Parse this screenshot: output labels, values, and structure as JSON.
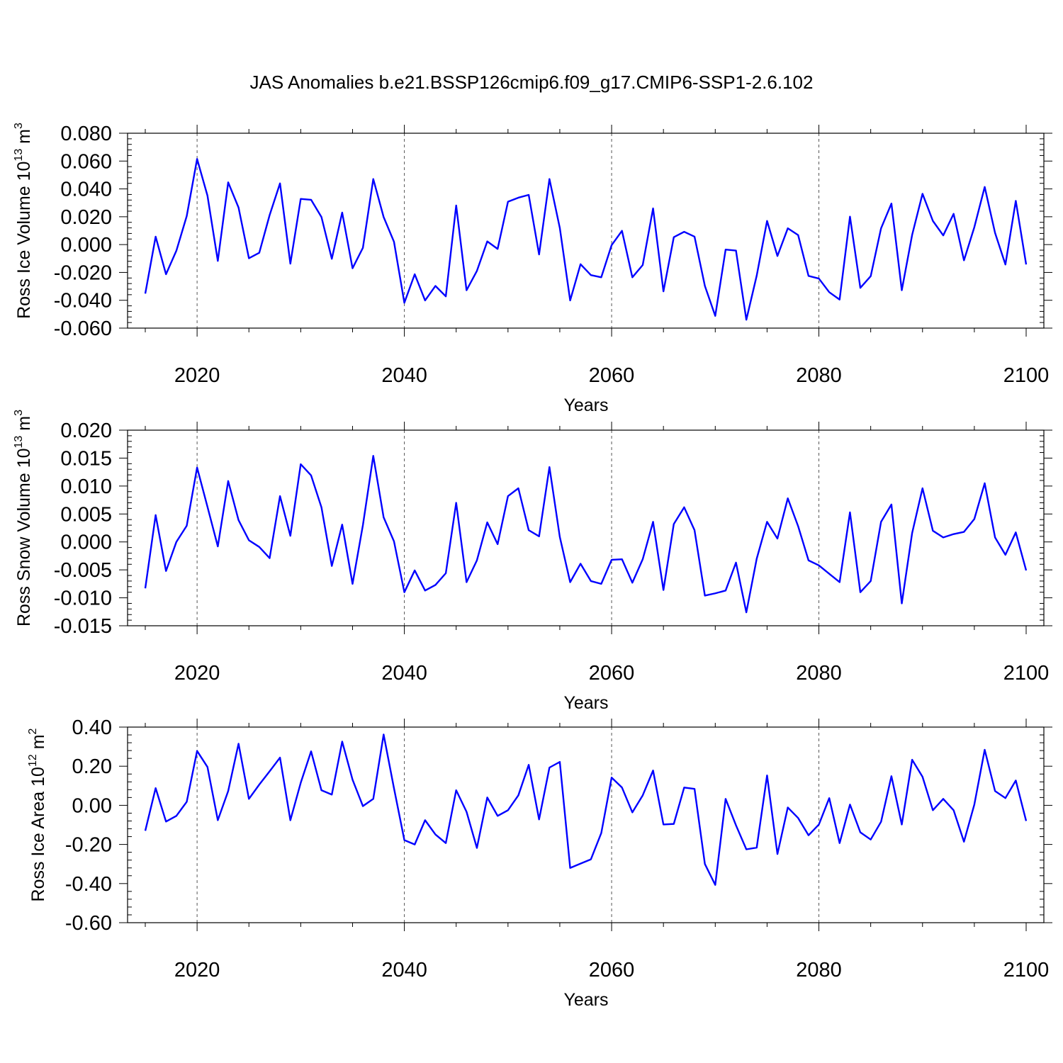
{
  "title": "JAS Anomalies b.e21.BSSP126cmip6.f09_g17.CMIP6-SSP1-2.6.102",
  "colors": {
    "series": "#0000ff",
    "axes": "#000000",
    "grid": "#555555"
  },
  "chart_data": [
    {
      "type": "line",
      "xlabel": "Years",
      "ylabel_main": "Ross Ice Volume 10",
      "ylabel_exp": "13",
      "ylabel_unit": " m",
      "ylabel_unit_exp": "3",
      "xlim": [
        2015,
        2100
      ],
      "ylim": [
        -0.06,
        0.08
      ],
      "xticks": [
        2020,
        2040,
        2060,
        2080,
        2100
      ],
      "xtick_labels": [
        "2020",
        "2040",
        "2060",
        "2080",
        "2100"
      ],
      "yticks": [
        -0.06,
        -0.04,
        -0.02,
        0.0,
        0.02,
        0.04,
        0.06,
        0.08
      ],
      "ytick_labels": [
        "-0.060",
        "-0.040",
        "-0.020",
        "0.000",
        "0.020",
        "0.040",
        "0.060",
        "0.080"
      ],
      "grid": "vertical dashed at major x ticks",
      "x_start": 2015,
      "values": [
        -0.0352,
        0.0057,
        -0.0213,
        -0.0044,
        0.0205,
        0.0615,
        0.0352,
        -0.0117,
        0.0447,
        0.0266,
        -0.0098,
        -0.0059,
        0.0212,
        0.044,
        -0.0137,
        0.0328,
        0.0322,
        0.0198,
        -0.0102,
        0.023,
        -0.017,
        -0.0023,
        0.0471,
        0.0198,
        0.002,
        -0.0418,
        -0.0213,
        -0.0401,
        -0.0297,
        -0.0372,
        0.0281,
        -0.0328,
        -0.0189,
        0.0023,
        -0.0031,
        0.0308,
        0.0337,
        0.0357,
        -0.0071,
        0.0471,
        0.012,
        -0.0401,
        -0.0141,
        -0.0219,
        -0.0235,
        -0.0004,
        0.0099,
        -0.0235,
        -0.0147,
        0.026,
        -0.0336,
        0.0053,
        0.0092,
        0.0057,
        -0.0297,
        -0.0512,
        -0.0036,
        -0.0043,
        -0.054,
        -0.0223,
        0.017,
        -0.0082,
        0.0117,
        0.0068,
        -0.0225,
        -0.0244,
        -0.0342,
        -0.0395,
        0.0201,
        -0.0311,
        -0.0227,
        0.0117,
        0.0295,
        -0.0328,
        0.007,
        0.0365,
        0.017,
        0.0066,
        0.0221,
        -0.0113,
        0.0125,
        0.0414,
        0.0084,
        -0.0143,
        0.0314,
        -0.0143
      ]
    },
    {
      "type": "line",
      "xlabel": "Years",
      "ylabel_main": "Ross Snow Volume 10",
      "ylabel_exp": "13",
      "ylabel_unit": " m",
      "ylabel_unit_exp": "3",
      "xlim": [
        2015,
        2100
      ],
      "ylim": [
        -0.015,
        0.02
      ],
      "xticks": [
        2020,
        2040,
        2060,
        2080,
        2100
      ],
      "xtick_labels": [
        "2020",
        "2040",
        "2060",
        "2080",
        "2100"
      ],
      "yticks": [
        -0.015,
        -0.01,
        -0.005,
        0.0,
        0.005,
        0.01,
        0.015,
        0.02
      ],
      "ytick_labels": [
        "-0.015",
        "-0.010",
        "-0.005",
        "0.000",
        "0.005",
        "0.010",
        "0.015",
        "0.020"
      ],
      "grid": "vertical dashed at major x ticks",
      "x_start": 2015,
      "values": [
        -0.0083,
        0.0048,
        -0.0052,
        0.0,
        0.0029,
        0.0133,
        0.0063,
        -0.0008,
        0.0109,
        0.0039,
        0.0003,
        -0.0009,
        -0.0029,
        0.0082,
        0.0011,
        0.0139,
        0.0119,
        0.0062,
        -0.0043,
        0.0031,
        -0.0075,
        0.003,
        0.0154,
        0.0044,
        0.0001,
        -0.009,
        -0.0051,
        -0.0087,
        -0.0077,
        -0.0056,
        0.007,
        -0.0072,
        -0.0033,
        0.0035,
        -0.0004,
        0.0082,
        0.0096,
        0.0021,
        0.001,
        0.0134,
        0.0009,
        -0.0072,
        -0.0039,
        -0.007,
        -0.0075,
        -0.0032,
        -0.0031,
        -0.0073,
        -0.0031,
        0.0036,
        -0.0086,
        0.0032,
        0.0062,
        0.0021,
        -0.0096,
        -0.0092,
        -0.0087,
        -0.0037,
        -0.0126,
        -0.003,
        0.0036,
        0.0006,
        0.0078,
        0.0028,
        -0.0033,
        -0.0042,
        -0.0057,
        -0.0072,
        0.0053,
        -0.009,
        -0.007,
        0.0036,
        0.0067,
        -0.011,
        0.0016,
        0.0096,
        0.002,
        0.0008,
        0.0014,
        0.0018,
        0.0041,
        0.0105,
        0.0008,
        -0.0023,
        0.0017,
        -0.0051
      ]
    },
    {
      "type": "line",
      "xlabel": "Years",
      "ylabel_main": "Ross Ice Area 10",
      "ylabel_exp": "12",
      "ylabel_unit": " m",
      "ylabel_unit_exp": "2",
      "xlim": [
        2015,
        2100
      ],
      "ylim": [
        -0.6,
        0.4
      ],
      "xticks": [
        2020,
        2040,
        2060,
        2080,
        2100
      ],
      "xtick_labels": [
        "2020",
        "2040",
        "2060",
        "2080",
        "2100"
      ],
      "yticks": [
        -0.6,
        -0.4,
        -0.2,
        0.0,
        0.2,
        0.4
      ],
      "ytick_labels": [
        "-0.60",
        "-0.40",
        "-0.20",
        "0.00",
        "0.20",
        "0.40"
      ],
      "grid": "vertical dashed at major x ticks",
      "x_start": 2015,
      "values": [
        -0.13,
        0.088,
        -0.083,
        -0.054,
        0.018,
        0.278,
        0.196,
        -0.076,
        0.073,
        0.315,
        0.033,
        0.106,
        0.174,
        0.244,
        -0.076,
        0.115,
        0.276,
        0.077,
        0.055,
        0.326,
        0.131,
        -0.004,
        0.033,
        0.362,
        0.087,
        -0.178,
        -0.2,
        -0.076,
        -0.149,
        -0.193,
        0.077,
        -0.033,
        -0.218,
        0.04,
        -0.054,
        -0.025,
        0.051,
        0.207,
        -0.072,
        0.193,
        0.222,
        -0.32,
        -0.298,
        -0.276,
        -0.142,
        0.142,
        0.091,
        -0.036,
        0.051,
        0.178,
        -0.098,
        -0.095,
        0.091,
        0.084,
        -0.3,
        -0.407,
        0.033,
        -0.102,
        -0.225,
        -0.216,
        0.153,
        -0.249,
        -0.011,
        -0.065,
        -0.153,
        -0.098,
        0.037,
        -0.193,
        0.004,
        -0.138,
        -0.175,
        -0.084,
        0.149,
        -0.098,
        0.233,
        0.146,
        -0.025,
        0.033,
        -0.025,
        -0.186,
        0.004,
        0.284,
        0.073,
        0.037,
        0.127,
        -0.08
      ]
    }
  ]
}
